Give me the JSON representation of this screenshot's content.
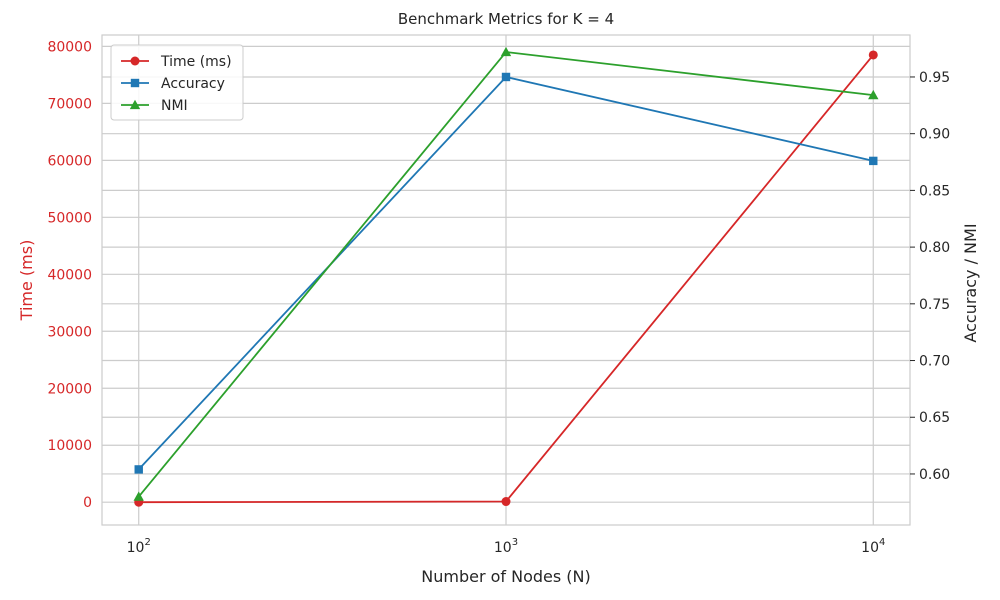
{
  "chart_data": {
    "type": "line",
    "title": "Benchmark Metrics for K = 4",
    "xlabel": "Number of Nodes (N)",
    "ylabel_left": "Time (ms)",
    "ylabel_right": "Accuracy / NMI",
    "x_scale": "log",
    "x": [
      100,
      1000,
      10000
    ],
    "x_ticks": [
      {
        "value": 100,
        "base": "10",
        "exp": "2"
      },
      {
        "value": 1000,
        "base": "10",
        "exp": "3"
      },
      {
        "value": 10000,
        "base": "10",
        "exp": "4"
      }
    ],
    "ylim_left": [
      -4000,
      82000
    ],
    "yticks_left": [
      "0",
      "10000",
      "20000",
      "30000",
      "40000",
      "50000",
      "60000",
      "70000",
      "80000"
    ],
    "ylim_right": [
      0.555,
      0.987
    ],
    "yticks_right": [
      "0.60",
      "0.65",
      "0.70",
      "0.75",
      "0.80",
      "0.85",
      "0.90",
      "0.95"
    ],
    "grid": true,
    "legend_position": "top-left",
    "series": [
      {
        "name": "Time (ms)",
        "axis": "left",
        "color": "#d62728",
        "marker": "circle",
        "values": [
          2,
          120,
          78500
        ]
      },
      {
        "name": "Accuracy",
        "axis": "right",
        "color": "#1f77b4",
        "marker": "square",
        "values": [
          0.604,
          0.95,
          0.876
        ]
      },
      {
        "name": "NMI",
        "axis": "right",
        "color": "#2ca02c",
        "marker": "triangle",
        "values": [
          0.58,
          0.972,
          0.934
        ]
      }
    ]
  }
}
